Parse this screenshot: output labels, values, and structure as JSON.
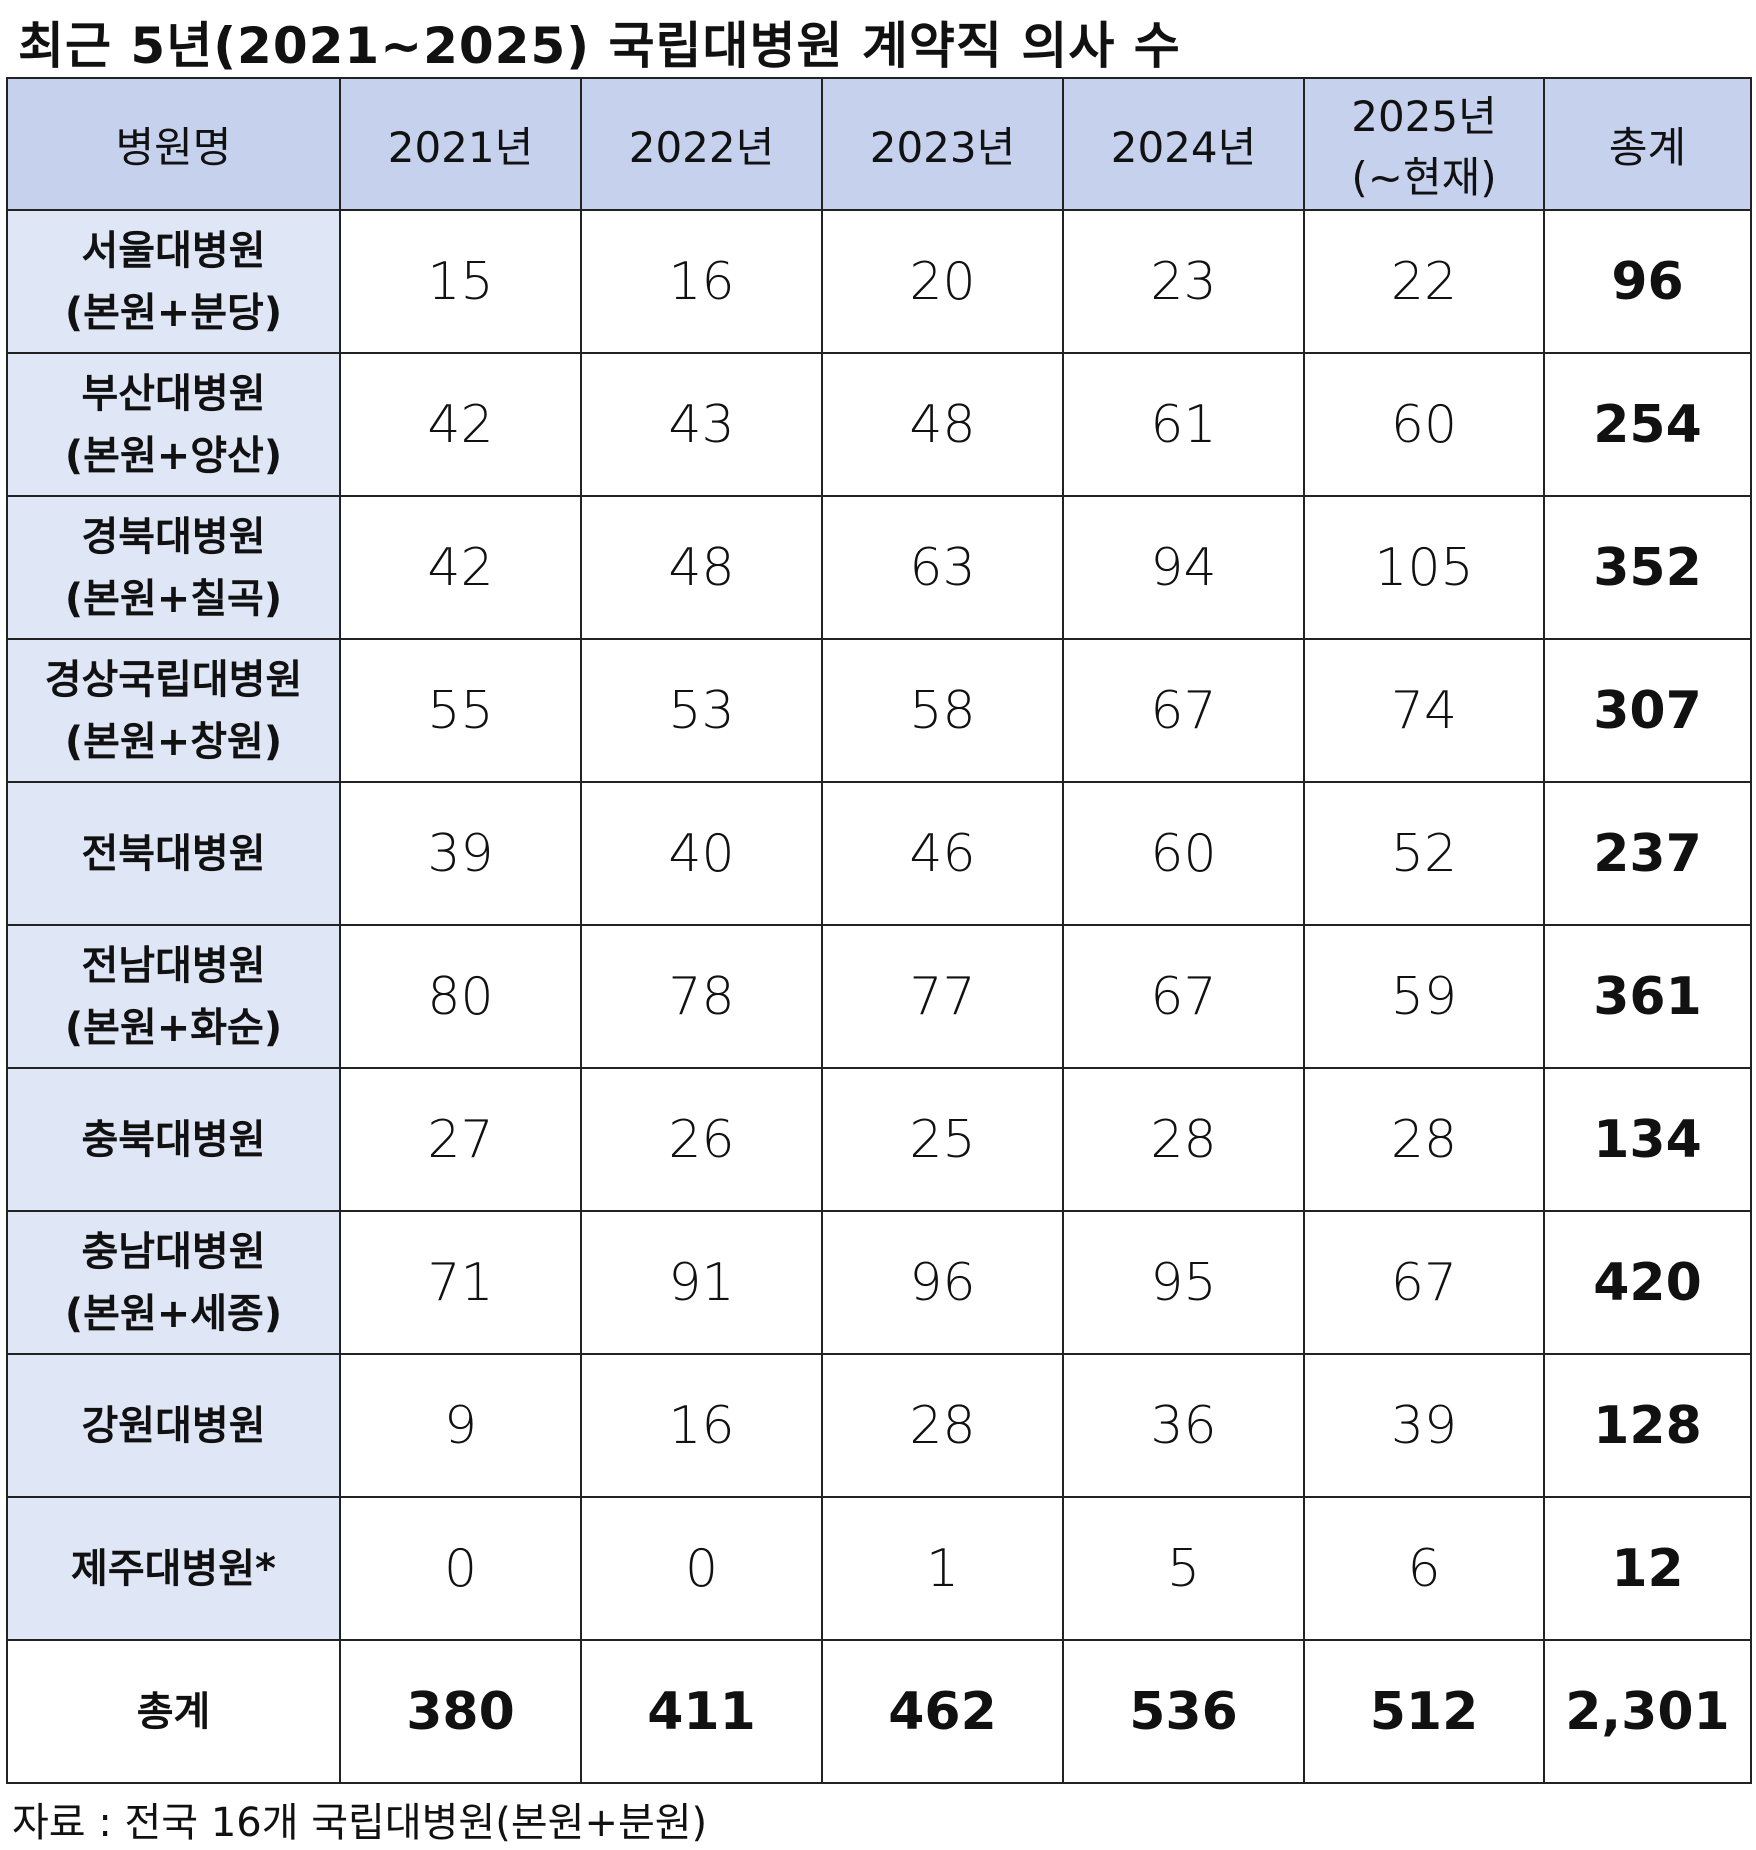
{
  "title": "최근 5년(2021~2025) 국립대병원 계약직 의사 수",
  "table": {
    "header": [
      [
        "병원명"
      ],
      [
        "2021년"
      ],
      [
        "2022년"
      ],
      [
        "2023년"
      ],
      [
        "2024년"
      ],
      [
        "2025년",
        "(~현재)"
      ],
      [
        "총계"
      ]
    ],
    "rows": [
      {
        "name": [
          "서울대병원",
          "(본원+분당)"
        ],
        "values": [
          15,
          16,
          20,
          23,
          22,
          96
        ]
      },
      {
        "name": [
          "부산대병원",
          "(본원+양산)"
        ],
        "values": [
          42,
          43,
          48,
          61,
          60,
          254
        ]
      },
      {
        "name": [
          "경북대병원",
          "(본원+칠곡)"
        ],
        "values": [
          42,
          48,
          63,
          94,
          105,
          352
        ]
      },
      {
        "name": [
          "경상국립대병원",
          "(본원+창원)"
        ],
        "values": [
          55,
          53,
          58,
          67,
          74,
          307
        ]
      },
      {
        "name": [
          "전북대병원"
        ],
        "values": [
          39,
          40,
          46,
          60,
          52,
          237
        ]
      },
      {
        "name": [
          "전남대병원",
          "(본원+화순)"
        ],
        "values": [
          80,
          78,
          77,
          67,
          59,
          361
        ]
      },
      {
        "name": [
          "충북대병원"
        ],
        "values": [
          27,
          26,
          25,
          28,
          28,
          134
        ]
      },
      {
        "name": [
          "충남대병원",
          "(본원+세종)"
        ],
        "values": [
          71,
          91,
          96,
          95,
          67,
          420
        ]
      },
      {
        "name": [
          "강원대병원"
        ],
        "values": [
          9,
          16,
          28,
          36,
          39,
          128
        ]
      },
      {
        "name": [
          "제주대병원*"
        ],
        "values": [
          0,
          0,
          1,
          5,
          6,
          12
        ]
      }
    ],
    "total": {
      "name": [
        "총계"
      ],
      "values": [
        380,
        411,
        462,
        536,
        512,
        "2,301"
      ]
    }
  },
  "source": "자료 : 전국 16개 국립대병원(본원+분원)"
}
